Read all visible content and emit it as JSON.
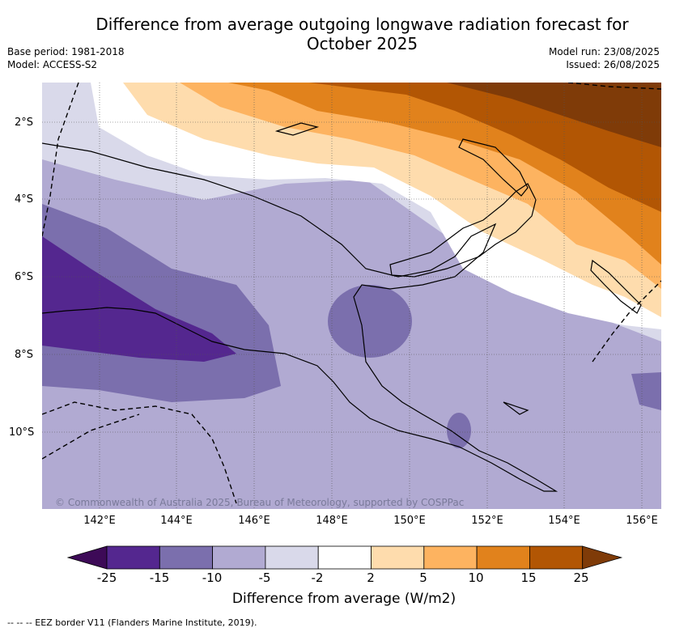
{
  "header": {
    "title_line1": "Difference from average outgoing longwave radiation forecast for",
    "title_line2": "October 2025",
    "base_period": "Base period: 1981-2018",
    "model": "Model: ACCESS-S2",
    "model_run": "Model run: 23/08/2025",
    "issued": "Issued: 26/08/2025"
  },
  "map": {
    "region": "Papua New Guinea",
    "lat_labels": [
      "2°S",
      "4°S",
      "6°S",
      "8°S",
      "10°S"
    ],
    "lon_labels": [
      "142°E",
      "144°E",
      "146°E",
      "148°E",
      "150°E",
      "152°E",
      "154°E",
      "156°E"
    ],
    "copyright": "© Commonwealth of Australia 2025, Bureau of Meteorology, supported by COSPPac",
    "palette": {
      "lt_m25": "#3d0a57",
      "m25_m15": "#54278f",
      "m15_m10": "#7b6fad",
      "m10_m5": "#b1aad2",
      "m5_m2": "#d9d9ea",
      "m2_2": "#ffffff",
      "p2_p5": "#fedcad",
      "p5_p10": "#fdb360",
      "p10_p15": "#e1821c",
      "p15_p25": "#b25604",
      "gt_p25": "#7f3b08"
    }
  },
  "colorbar": {
    "ticks": [
      "-25",
      "-15",
      "-10",
      "-5",
      "-2",
      "2",
      "5",
      "10",
      "15",
      "25"
    ],
    "colors": [
      "#54278f",
      "#7b6fad",
      "#b1aad2",
      "#d9d9ea",
      "#ffffff",
      "#fedcad",
      "#fdb360",
      "#e1821c",
      "#b25604"
    ],
    "low_color": "#3d0a57",
    "high_color": "#7f3b08",
    "label": "Difference from average (W/m2)"
  },
  "footnote": "-- -- -- EEZ border V11 (Flanders Marine Institute, 2019)."
}
